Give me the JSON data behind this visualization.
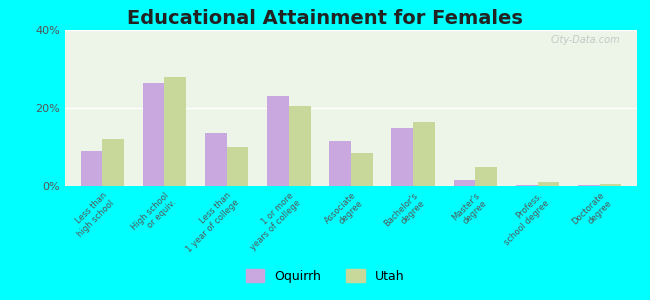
{
  "title": "Educational Attainment for Females",
  "categories": [
    "Less than\nhigh school",
    "High school\nor equiv.",
    "Less than\n1 year of college",
    "1 or more\nyears of college",
    "Associate\ndegree",
    "Bachelor's\ndegree",
    "Master's\ndegree",
    "Profess.\nschool degree",
    "Doctorate\ndegree"
  ],
  "oquirrh_values": [
    9.0,
    26.5,
    13.5,
    23.0,
    11.5,
    15.0,
    1.5,
    0.2,
    0.2
  ],
  "utah_values": [
    12.0,
    28.0,
    10.0,
    20.5,
    8.5,
    16.5,
    5.0,
    1.0,
    0.5
  ],
  "oquirrh_color": "#c9a8e0",
  "utah_color": "#c8d89a",
  "ylim": [
    0,
    40
  ],
  "yticks": [
    0,
    20,
    40
  ],
  "ytick_labels": [
    "0%",
    "20%",
    "40%"
  ],
  "background_color": "#edf5e8",
  "outer_background": "#00ffff",
  "legend_labels": [
    "Oquirrh",
    "Utah"
  ],
  "bar_width": 0.35,
  "title_fontsize": 14,
  "watermark": "City-Data.com"
}
